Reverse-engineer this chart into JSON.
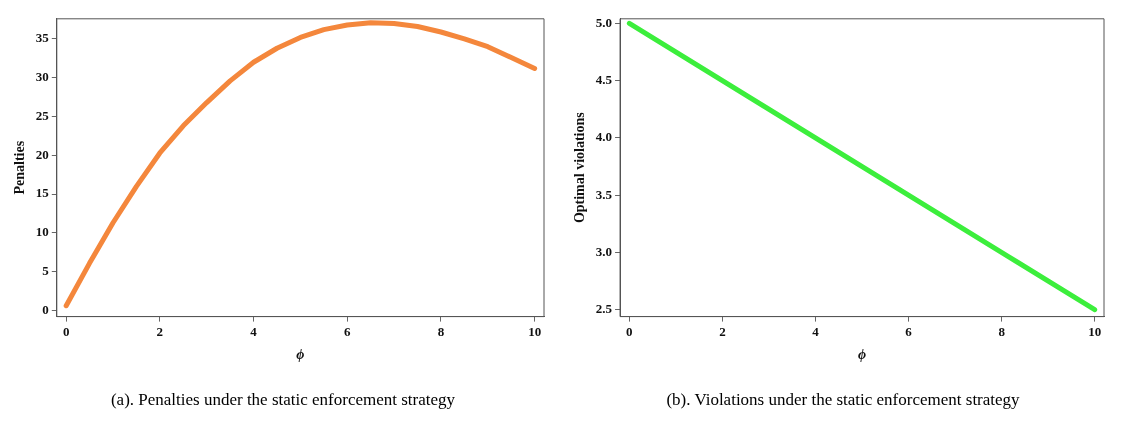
{
  "chart_data": [
    {
      "type": "line",
      "xlabel": "ϕ",
      "ylabel": "Penalties",
      "x": [
        0,
        0.5,
        1,
        1.5,
        2,
        2.5,
        3,
        3.5,
        4,
        4.5,
        5,
        5.5,
        6,
        6.5,
        7,
        7.5,
        8,
        8.5,
        9,
        9.5,
        10
      ],
      "series": [
        {
          "color": "#f4873c",
          "values": [
            0.6,
            6.1,
            11.3,
            16,
            20.3,
            23.8,
            26.8,
            29.6,
            32,
            33.8,
            35.2,
            36.2,
            36.8,
            37.1,
            37,
            36.6,
            35.9,
            35,
            34,
            32.6,
            31.2
          ]
        }
      ],
      "xlim": [
        -0.2,
        10.2
      ],
      "xticks": [
        0,
        2,
        4,
        6,
        8,
        10
      ],
      "ylim": [
        -0.8,
        37.6
      ],
      "yticks": [
        0,
        5,
        10,
        15,
        20,
        25,
        30,
        35
      ],
      "grid": false,
      "legend": false,
      "marker": "none",
      "annotations": [
        "(a). Penalties under the static enforcement strategy"
      ]
    },
    {
      "type": "line",
      "xlabel": "ϕ",
      "ylabel": "Optimal violations",
      "x": [
        0,
        10
      ],
      "series": [
        {
          "color": "#3cee3c",
          "values": [
            5.0,
            2.5
          ]
        }
      ],
      "xlim": [
        -0.2,
        10.2
      ],
      "xticks": [
        0,
        2,
        4,
        6,
        8,
        10
      ],
      "ylim": [
        2.44,
        5.04
      ],
      "yticks": [
        {
          "value": 2.5,
          "label": "2.5"
        },
        {
          "value": 3,
          "label": "3.0"
        },
        {
          "value": 3.5,
          "label": "3.5"
        },
        {
          "value": 4,
          "label": "4.0"
        },
        {
          "value": 4.5,
          "label": "4.5"
        },
        {
          "value": 5,
          "label": "5.0"
        }
      ],
      "grid": false,
      "legend": false,
      "marker": "none",
      "annotations": [
        "(b). Violations under the static enforcement strategy"
      ]
    }
  ]
}
